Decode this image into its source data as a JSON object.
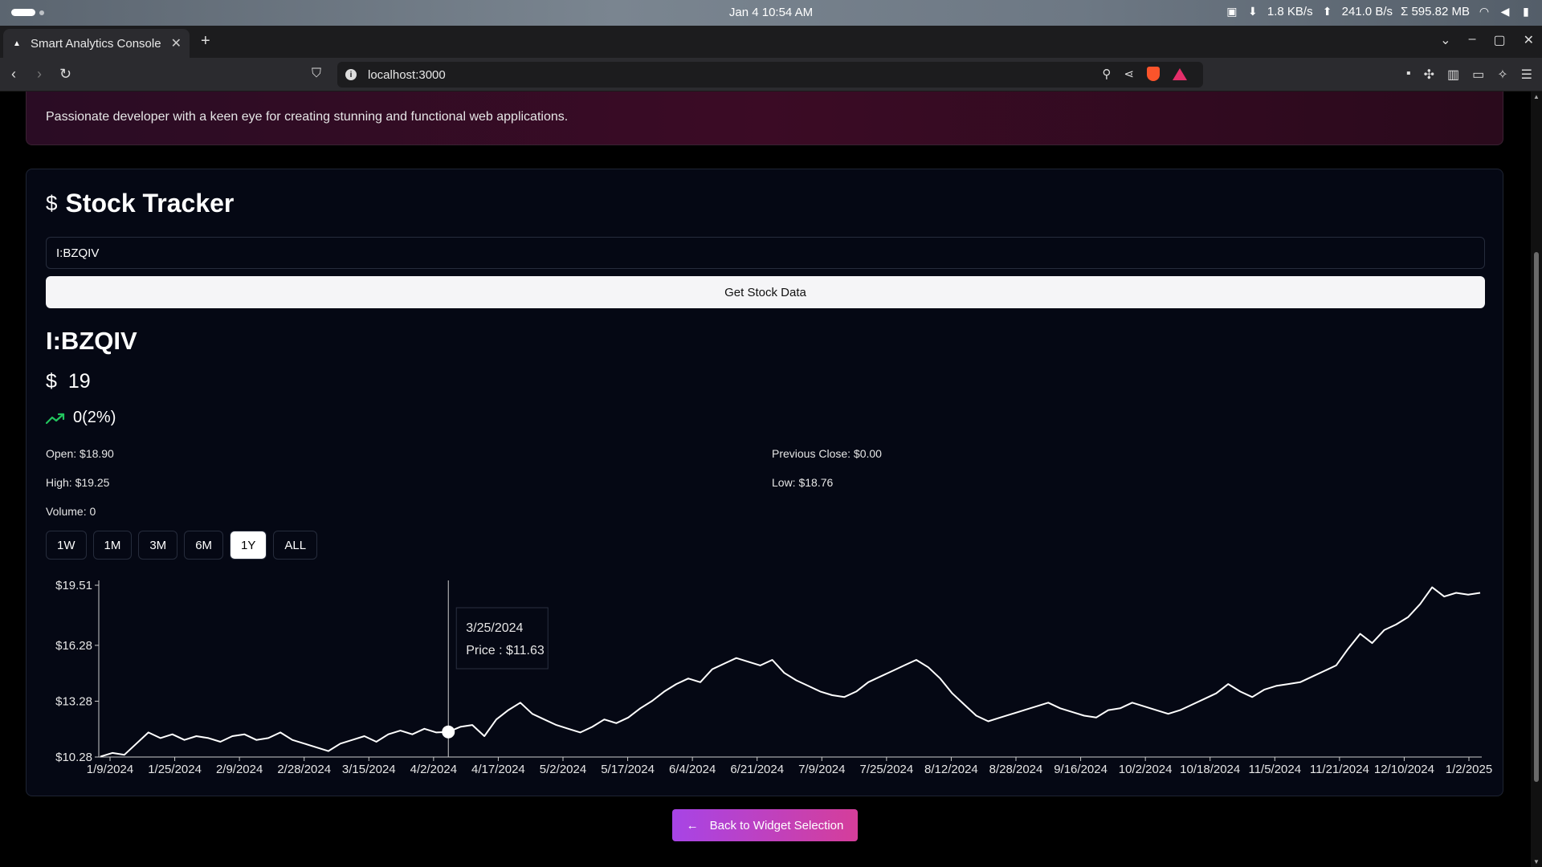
{
  "os": {
    "clock": "Jan 4  10:54 AM",
    "net_down": "1.8 KB/s",
    "net_up": "241.0  B/s",
    "net_total": "Σ  595.82 MB"
  },
  "browser": {
    "tab_title": "Smart Analytics Console",
    "url": "localhost:3000"
  },
  "profile": {
    "bio": "Passionate developer with a keen eye for creating stunning and functional web applications."
  },
  "stock": {
    "title": "Stock Tracker",
    "input_value": "I:BZQIV",
    "button_label": "Get Stock Data",
    "symbol": "I:BZQIV",
    "price": "19",
    "change": "0(2%)",
    "open": "Open: $18.90",
    "previous_close": "Previous Close: $0.00",
    "high": "High: $19.25",
    "low": "Low: $18.76",
    "volume": "Volume: 0",
    "ranges": [
      "1W",
      "1M",
      "3M",
      "6M",
      "1Y",
      "ALL"
    ],
    "active_range": "1Y",
    "back_label": "Back to Widget Selection",
    "up_color": "#22c55e"
  },
  "chart_data": {
    "type": "line",
    "ytick_labels": [
      "$19.51",
      "$16.28",
      "$13.28",
      "$10.28"
    ],
    "ytick_values": [
      19.51,
      16.28,
      13.28,
      10.28
    ],
    "ylim": [
      10.28,
      19.51
    ],
    "xtick_labels": [
      "1/9/2024",
      "1/25/2024",
      "2/9/2024",
      "2/28/2024",
      "3/15/2024",
      "4/2/2024",
      "4/17/2024",
      "5/2/2024",
      "5/17/2024",
      "6/4/2024",
      "6/21/2024",
      "7/9/2024",
      "7/25/2024",
      "8/12/2024",
      "8/28/2024",
      "9/16/2024",
      "10/2/2024",
      "10/18/2024",
      "11/5/2024",
      "11/21/2024",
      "12/10/2024",
      "1/2/2025"
    ],
    "series": [
      {
        "values": [
          10.3,
          10.5,
          10.4,
          11.0,
          11.6,
          11.3,
          11.5,
          11.2,
          11.4,
          11.3,
          11.1,
          11.4,
          11.5,
          11.2,
          11.3,
          11.6,
          11.2,
          11.0,
          10.8,
          10.6,
          11.0,
          11.2,
          11.4,
          11.1,
          11.5,
          11.7,
          11.5,
          11.8,
          11.6,
          11.63,
          11.9,
          12.0,
          11.4,
          12.3,
          12.8,
          13.2,
          12.6,
          12.3,
          12.0,
          11.8,
          11.6,
          11.9,
          12.3,
          12.1,
          12.4,
          12.9,
          13.3,
          13.8,
          14.2,
          14.5,
          14.3,
          15.0,
          15.3,
          15.6,
          15.4,
          15.2,
          15.5,
          14.8,
          14.4,
          14.1,
          13.8,
          13.6,
          13.5,
          13.8,
          14.3,
          14.6,
          14.9,
          15.2,
          15.5,
          15.1,
          14.5,
          13.7,
          13.1,
          12.5,
          12.2,
          12.4,
          12.6,
          12.8,
          13.0,
          13.2,
          12.9,
          12.7,
          12.5,
          12.4,
          12.8,
          12.9,
          13.2,
          13.0,
          12.8,
          12.6,
          12.8,
          13.1,
          13.4,
          13.7,
          14.2,
          13.8,
          13.5,
          13.9,
          14.1,
          14.2,
          14.3,
          14.6,
          14.9,
          15.2,
          16.1,
          16.9,
          16.4,
          17.1,
          17.4,
          17.8,
          18.5,
          19.4,
          18.9,
          19.1,
          19.0,
          19.1
        ]
      }
    ],
    "highlight": {
      "date": "3/25/2024",
      "price_label": "Price : $11.63",
      "value": 11.63,
      "index": 29
    }
  }
}
